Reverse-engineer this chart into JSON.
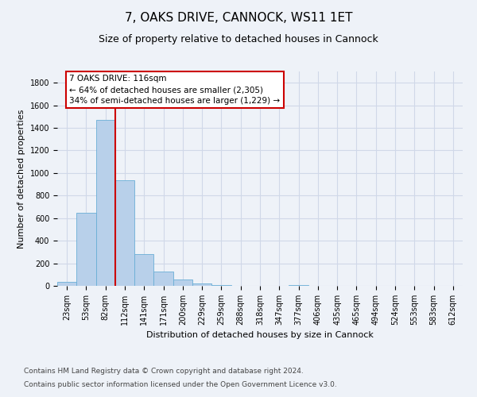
{
  "title": "7, OAKS DRIVE, CANNOCK, WS11 1ET",
  "subtitle": "Size of property relative to detached houses in Cannock",
  "xlabel": "Distribution of detached houses by size in Cannock",
  "ylabel": "Number of detached properties",
  "bar_categories": [
    "23sqm",
    "53sqm",
    "82sqm",
    "112sqm",
    "141sqm",
    "171sqm",
    "200sqm",
    "229sqm",
    "259sqm",
    "288sqm",
    "318sqm",
    "347sqm",
    "377sqm",
    "406sqm",
    "435sqm",
    "465sqm",
    "494sqm",
    "524sqm",
    "553sqm",
    "583sqm",
    "612sqm"
  ],
  "bar_values": [
    38,
    648,
    1468,
    935,
    285,
    128,
    57,
    22,
    10,
    0,
    0,
    0,
    10,
    0,
    0,
    0,
    0,
    0,
    0,
    0,
    0
  ],
  "bar_color": "#b8d0ea",
  "bar_edgecolor": "#6aaed6",
  "bar_linewidth": 0.6,
  "vline_x_index": 2.5,
  "vline_color": "#cc0000",
  "vline_linewidth": 1.5,
  "annotation_line1": "7 OAKS DRIVE: 116sqm",
  "annotation_line2": "← 64% of detached houses are smaller (2,305)",
  "annotation_line3": "34% of semi-detached houses are larger (1,229) →",
  "annotation_box_color": "#ffffff",
  "annotation_box_edgecolor": "#cc0000",
  "ylim": [
    0,
    1900
  ],
  "yticks": [
    0,
    200,
    400,
    600,
    800,
    1000,
    1200,
    1400,
    1600,
    1800
  ],
  "grid_color": "#d0d8e8",
  "background_color": "#eef2f8",
  "footer_line1": "Contains HM Land Registry data © Crown copyright and database right 2024.",
  "footer_line2": "Contains public sector information licensed under the Open Government Licence v3.0.",
  "title_fontsize": 11,
  "subtitle_fontsize": 9,
  "xlabel_fontsize": 8,
  "ylabel_fontsize": 8,
  "tick_fontsize": 7,
  "annotation_fontsize": 7.5,
  "footer_fontsize": 6.5
}
